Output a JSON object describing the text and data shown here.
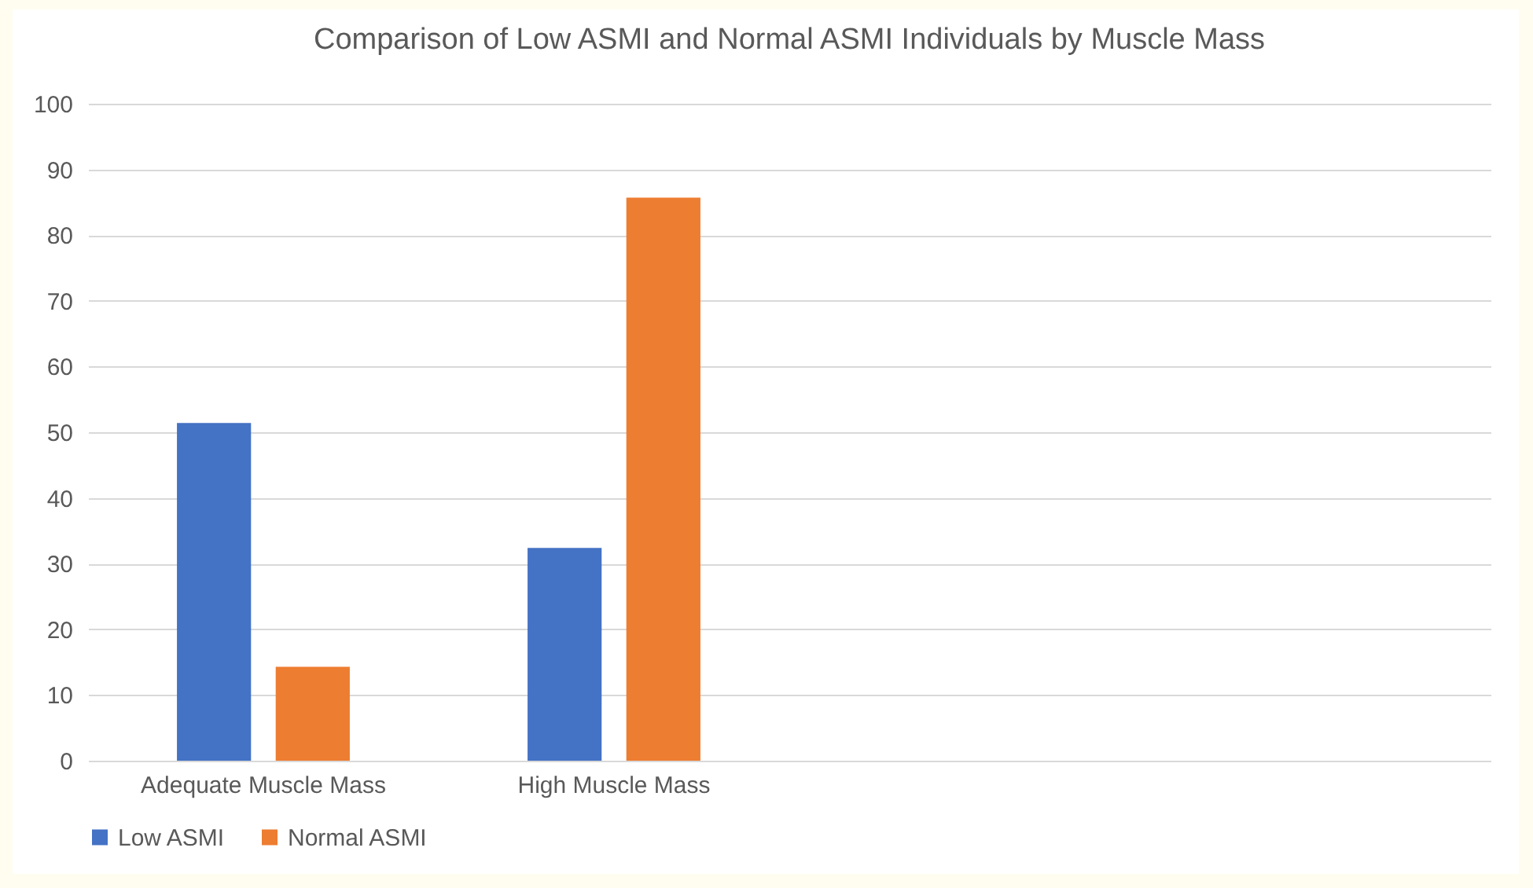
{
  "chart_data": {
    "type": "bar",
    "title": "Comparison of Low ASMI and Normal ASMI Individuals by Muscle Mass",
    "categories": [
      "Adequate Muscle Mass",
      "High Muscle Mass",
      null,
      null
    ],
    "series": [
      {
        "name": "Low ASMI",
        "color": "#4472c4",
        "values": [
          51.4,
          32.4,
          null,
          null
        ]
      },
      {
        "name": "Normal ASMI",
        "color": "#ed7d31",
        "values": [
          14.3,
          85.7,
          null,
          null
        ]
      }
    ],
    "ylim": [
      0,
      100
    ],
    "yticks": [
      0,
      10,
      20,
      30,
      40,
      50,
      60,
      70,
      80,
      90,
      100
    ],
    "grid": "y",
    "legend": "bottom"
  }
}
